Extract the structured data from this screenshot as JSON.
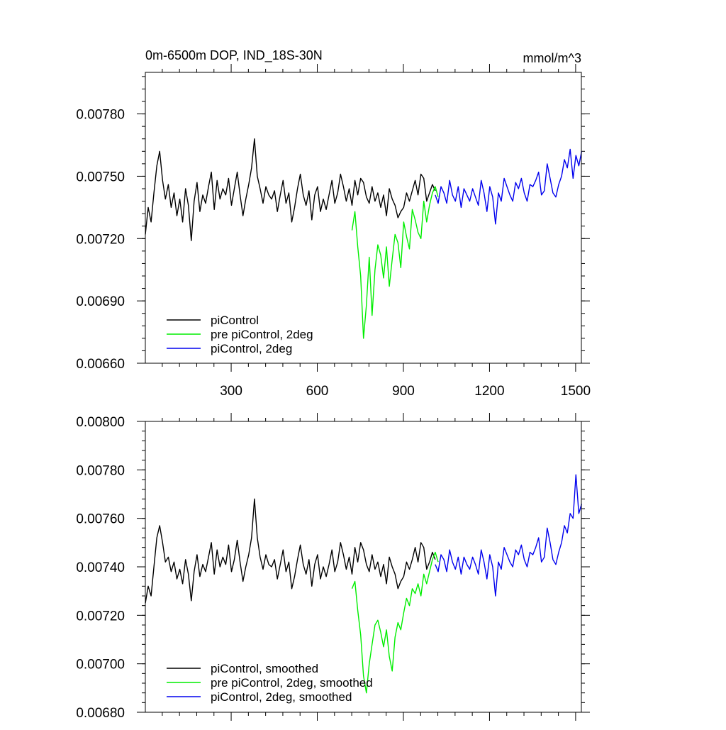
{
  "chart_data": [
    {
      "type": "line",
      "title": "0m-6500m DOP, IND_18S-30N",
      "units": "mmol/m^3",
      "xlabel": "",
      "ylabel": "",
      "xlim": [
        1,
        1520
      ],
      "ylim": [
        0.0066,
        0.008
      ],
      "xticks": [
        300,
        600,
        900,
        1200,
        1500
      ],
      "xtick_labels": [
        "300",
        "600",
        "900",
        "1200",
        "1500"
      ],
      "yticks": [
        0.0066,
        0.0069,
        0.0072,
        0.0075,
        0.0078
      ],
      "ytick_labels": [
        "0.00660",
        "0.00690",
        "0.00720",
        "0.00750",
        "0.00780"
      ],
      "legend_position": "bottom-left",
      "series": [
        {
          "name": "piControl",
          "color": "#000000",
          "x_start": 1,
          "x_step": 10,
          "values": [
            0.00722,
            0.00735,
            0.00728,
            0.00742,
            0.00755,
            0.00762,
            0.00748,
            0.00739,
            0.00746,
            0.00735,
            0.00742,
            0.00731,
            0.00739,
            0.00728,
            0.00744,
            0.00736,
            0.00719,
            0.00738,
            0.00747,
            0.00733,
            0.00741,
            0.00737,
            0.00745,
            0.00752,
            0.00734,
            0.00748,
            0.00739,
            0.00744,
            0.00741,
            0.00749,
            0.00736,
            0.00744,
            0.00752,
            0.00741,
            0.00731,
            0.00739,
            0.00746,
            0.00754,
            0.00768,
            0.0075,
            0.00744,
            0.00737,
            0.00745,
            0.00741,
            0.00739,
            0.00743,
            0.00733,
            0.00741,
            0.00748,
            0.00737,
            0.00742,
            0.00728,
            0.00735,
            0.00744,
            0.00751,
            0.00741,
            0.00736,
            0.00743,
            0.00729,
            0.00741,
            0.00745,
            0.00733,
            0.00739,
            0.00734,
            0.00741,
            0.00748,
            0.00737,
            0.00742,
            0.00751,
            0.00745,
            0.00738,
            0.00744,
            0.00736,
            0.00748,
            0.00741,
            0.00749,
            0.00747,
            0.0074,
            0.00737,
            0.00745,
            0.00738,
            0.00742,
            0.00735,
            0.00741,
            0.00731,
            0.00744,
            0.00739,
            0.00736,
            0.0073,
            0.00733,
            0.00735,
            0.00742,
            0.00738,
            0.00743,
            0.00748,
            0.00741,
            0.00751,
            0.00749,
            0.00738,
            0.00742,
            0.00746,
            0.00743
          ]
        },
        {
          "name": "pre piControl, 2deg",
          "color": "#00ee00",
          "x_start": 721,
          "x_step": 10,
          "values": [
            0.00724,
            0.00733,
            0.00716,
            0.00702,
            0.00672,
            0.00688,
            0.00711,
            0.00683,
            0.00705,
            0.00717,
            0.00712,
            0.00701,
            0.00716,
            0.00697,
            0.0071,
            0.00722,
            0.00718,
            0.00706,
            0.00728,
            0.00721,
            0.00715,
            0.00734,
            0.00729,
            0.00723,
            0.0072,
            0.00738,
            0.00728,
            0.00736,
            0.00742,
            0.00745,
            0.0074
          ]
        },
        {
          "name": "piControl, 2deg",
          "color": "#0000ee",
          "x_start": 1011,
          "x_step": 10,
          "values": [
            0.00741,
            0.00737,
            0.00745,
            0.00742,
            0.00737,
            0.00748,
            0.00741,
            0.00738,
            0.00745,
            0.00735,
            0.00744,
            0.00741,
            0.00738,
            0.00744,
            0.0074,
            0.00736,
            0.00748,
            0.00742,
            0.00733,
            0.00745,
            0.0074,
            0.00727,
            0.00742,
            0.00738,
            0.00749,
            0.00745,
            0.00741,
            0.00738,
            0.00747,
            0.00744,
            0.00749,
            0.00742,
            0.00738,
            0.00746,
            0.00745,
            0.00748,
            0.00752,
            0.00741,
            0.00743,
            0.00756,
            0.00749,
            0.00742,
            0.0074,
            0.00746,
            0.0075,
            0.00758,
            0.00754,
            0.00763,
            0.00749,
            0.0076,
            0.00755,
            0.00762
          ]
        }
      ],
      "legend": [
        {
          "label": "piControl",
          "color": "#000000"
        },
        {
          "label": "pre piControl, 2deg",
          "color": "#00ee00"
        },
        {
          "label": "piControl, 2deg",
          "color": "#0000ee"
        }
      ]
    },
    {
      "type": "line",
      "title": "",
      "xlabel": "",
      "ylabel": "",
      "xlim": [
        1,
        1520
      ],
      "ylim": [
        0.0068,
        0.008
      ],
      "xticks": [
        300,
        600,
        900,
        1200,
        1500
      ],
      "xtick_labels": [],
      "yticks": [
        0.0068,
        0.007,
        0.0072,
        0.0074,
        0.0076,
        0.0078,
        0.008
      ],
      "ytick_labels": [
        "0.00680",
        "0.00700",
        "0.00720",
        "0.00740",
        "0.00760",
        "0.00780",
        "0.00800"
      ],
      "legend_position": "bottom-left",
      "series": [
        {
          "name": "piControl, smoothed",
          "color": "#000000",
          "x_start": 1,
          "x_step": 10,
          "values": [
            0.00725,
            0.00732,
            0.00728,
            0.0074,
            0.00752,
            0.00757,
            0.0075,
            0.00742,
            0.00744,
            0.00738,
            0.00742,
            0.00735,
            0.00739,
            0.00733,
            0.00743,
            0.00737,
            0.00726,
            0.00738,
            0.00745,
            0.00736,
            0.00741,
            0.00738,
            0.00744,
            0.0075,
            0.00737,
            0.00747,
            0.0074,
            0.00744,
            0.00741,
            0.00749,
            0.00738,
            0.00743,
            0.00751,
            0.00742,
            0.00734,
            0.0074,
            0.00745,
            0.00752,
            0.00768,
            0.00752,
            0.00744,
            0.00739,
            0.00745,
            0.00741,
            0.0074,
            0.00743,
            0.00735,
            0.00741,
            0.00747,
            0.00738,
            0.00742,
            0.00731,
            0.00736,
            0.00743,
            0.00749,
            0.00741,
            0.00737,
            0.00743,
            0.00732,
            0.00741,
            0.00745,
            0.00735,
            0.0074,
            0.00736,
            0.00741,
            0.00747,
            0.00738,
            0.00742,
            0.0075,
            0.00745,
            0.00739,
            0.00744,
            0.00737,
            0.00748,
            0.00742,
            0.0075,
            0.00747,
            0.00741,
            0.00738,
            0.00745,
            0.00739,
            0.00742,
            0.00736,
            0.00741,
            0.00733,
            0.00744,
            0.0074,
            0.00737,
            0.00731,
            0.00734,
            0.00736,
            0.00742,
            0.00739,
            0.00743,
            0.00748,
            0.00742,
            0.0075,
            0.00748,
            0.00739,
            0.00742,
            0.00746,
            0.00743
          ]
        },
        {
          "name": "pre piControl, 2deg, smoothed",
          "color": "#00ee00",
          "x_start": 721,
          "x_step": 10,
          "values": [
            0.00731,
            0.00734,
            0.00722,
            0.00712,
            0.00695,
            0.00688,
            0.007,
            0.00708,
            0.00716,
            0.00718,
            0.00713,
            0.00707,
            0.00714,
            0.00703,
            0.00697,
            0.00711,
            0.00717,
            0.00714,
            0.00721,
            0.00727,
            0.00724,
            0.00731,
            0.00729,
            0.00733,
            0.00728,
            0.00737,
            0.00733,
            0.00738,
            0.00743,
            0.00746,
            0.00742
          ]
        },
        {
          "name": "piControl, 2deg, smoothed",
          "color": "#0000ee",
          "x_start": 1011,
          "x_step": 10,
          "values": [
            0.00741,
            0.00738,
            0.00745,
            0.00743,
            0.00738,
            0.00747,
            0.00742,
            0.00739,
            0.00744,
            0.00737,
            0.00744,
            0.00741,
            0.00739,
            0.00744,
            0.00741,
            0.00737,
            0.00747,
            0.00742,
            0.00735,
            0.00745,
            0.0074,
            0.00728,
            0.00742,
            0.00739,
            0.00748,
            0.00745,
            0.00742,
            0.0074,
            0.00747,
            0.00745,
            0.00749,
            0.00743,
            0.0074,
            0.00746,
            0.00745,
            0.00748,
            0.00752,
            0.00742,
            0.00744,
            0.00756,
            0.0075,
            0.00743,
            0.00741,
            0.00746,
            0.0075,
            0.00757,
            0.00754,
            0.00762,
            0.0076,
            0.00778,
            0.00762,
            0.00766
          ]
        }
      ],
      "legend": [
        {
          "label": "piControl, smoothed",
          "color": "#000000"
        },
        {
          "label": "pre piControl, 2deg, smoothed",
          "color": "#00ee00"
        },
        {
          "label": "piControl, 2deg, smoothed",
          "color": "#0000ee"
        }
      ]
    }
  ]
}
